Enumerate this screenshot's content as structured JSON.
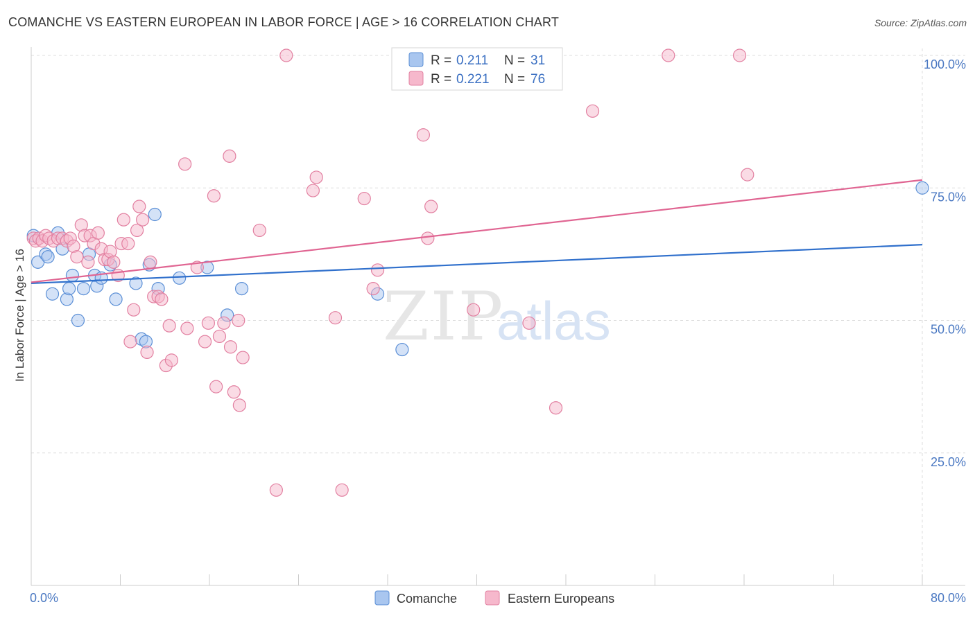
{
  "title": "COMANCHE VS EASTERN EUROPEAN IN LABOR FORCE | AGE > 16 CORRELATION CHART",
  "source": "Source: ZipAtlas.com",
  "watermark": {
    "zip": "ZIP",
    "atlas": "atlas"
  },
  "colors": {
    "comanche_fill": "#a9c6ef",
    "comanche_stroke": "#5b8fd6",
    "comanche_line": "#3070cc",
    "eastern_fill": "#f6b8cc",
    "eastern_stroke": "#e27fa0",
    "eastern_line": "#e06592",
    "grid": "#dddddd",
    "axis": "#cccccc",
    "tick_label": "#4a78c2"
  },
  "legend": {
    "rows": [
      {
        "r_label": "R =",
        "r_value": "0.211",
        "n_label": "N =",
        "n_value": "31"
      },
      {
        "r_label": "R =",
        "r_value": "0.221",
        "n_label": "N =",
        "n_value": "76"
      }
    ]
  },
  "chart_data": {
    "type": "scatter",
    "xlabel": "",
    "ylabel": "In Labor Force | Age > 16",
    "xlim": [
      0,
      80
    ],
    "ylim": [
      0,
      105
    ],
    "x_tick_labels": [
      "0.0%",
      "80.0%"
    ],
    "y_ticks": [
      25,
      50,
      75,
      100
    ],
    "y_tick_labels": [
      "25.0%",
      "50.0%",
      "75.0%",
      "100.0%"
    ],
    "grid": true,
    "legend_position": "bottom-center",
    "series": [
      {
        "name": "Comanche",
        "r": 0.211,
        "n": 31,
        "trend": {
          "x0": 0,
          "y0": 57.0,
          "x1": 80,
          "y1": 64.3
        },
        "points": [
          [
            0.2,
            66.0
          ],
          [
            0.6,
            61.0
          ],
          [
            1.3,
            62.5
          ],
          [
            1.5,
            62.0
          ],
          [
            1.9,
            55.0
          ],
          [
            2.4,
            66.5
          ],
          [
            2.8,
            63.5
          ],
          [
            3.2,
            54.0
          ],
          [
            3.4,
            56.0
          ],
          [
            3.7,
            58.5
          ],
          [
            4.2,
            50.0
          ],
          [
            4.7,
            56.0
          ],
          [
            5.2,
            62.5
          ],
          [
            5.7,
            58.5
          ],
          [
            5.9,
            56.5
          ],
          [
            6.3,
            58.0
          ],
          [
            7.1,
            60.5
          ],
          [
            7.6,
            54.0
          ],
          [
            9.4,
            57.0
          ],
          [
            9.9,
            46.5
          ],
          [
            10.3,
            46.0
          ],
          [
            10.6,
            60.5
          ],
          [
            11.1,
            70.0
          ],
          [
            11.4,
            56.0
          ],
          [
            13.3,
            58.0
          ],
          [
            15.8,
            60.0
          ],
          [
            17.6,
            51.0
          ],
          [
            18.9,
            56.0
          ],
          [
            31.1,
            55.0
          ],
          [
            33.3,
            44.5
          ],
          [
            80.0,
            75.0
          ]
        ]
      },
      {
        "name": "Eastern Europeans",
        "r": 0.221,
        "n": 76,
        "trend": {
          "x0": 0,
          "y0": 57.2,
          "x1": 80,
          "y1": 76.5
        },
        "points": [
          [
            0.2,
            65.5
          ],
          [
            0.4,
            65.0
          ],
          [
            0.7,
            65.5
          ],
          [
            1.0,
            65.0
          ],
          [
            1.3,
            66.0
          ],
          [
            1.6,
            65.5
          ],
          [
            2.0,
            65.0
          ],
          [
            2.4,
            65.5
          ],
          [
            2.8,
            65.5
          ],
          [
            3.2,
            65.0
          ],
          [
            3.5,
            65.5
          ],
          [
            3.8,
            64.0
          ],
          [
            4.1,
            62.0
          ],
          [
            4.5,
            68.0
          ],
          [
            4.8,
            66.0
          ],
          [
            5.1,
            61.0
          ],
          [
            5.3,
            66.0
          ],
          [
            5.6,
            64.5
          ],
          [
            6.0,
            66.5
          ],
          [
            6.3,
            63.5
          ],
          [
            6.6,
            61.5
          ],
          [
            6.9,
            61.5
          ],
          [
            7.1,
            63.0
          ],
          [
            7.4,
            61.0
          ],
          [
            7.8,
            58.5
          ],
          [
            8.1,
            64.5
          ],
          [
            8.3,
            69.0
          ],
          [
            8.7,
            64.5
          ],
          [
            8.9,
            46.0
          ],
          [
            9.2,
            52.0
          ],
          [
            9.5,
            67.0
          ],
          [
            9.7,
            71.5
          ],
          [
            10.0,
            69.0
          ],
          [
            10.4,
            44.0
          ],
          [
            10.7,
            61.0
          ],
          [
            11.0,
            54.5
          ],
          [
            11.4,
            54.5
          ],
          [
            11.7,
            54.0
          ],
          [
            12.1,
            41.5
          ],
          [
            12.4,
            49.0
          ],
          [
            12.6,
            42.5
          ],
          [
            13.8,
            79.5
          ],
          [
            14.0,
            48.5
          ],
          [
            14.9,
            60.0
          ],
          [
            15.6,
            46.0
          ],
          [
            15.9,
            49.5
          ],
          [
            16.4,
            73.5
          ],
          [
            16.6,
            37.5
          ],
          [
            16.9,
            47.0
          ],
          [
            17.3,
            49.5
          ],
          [
            17.8,
            81.0
          ],
          [
            17.9,
            45.0
          ],
          [
            18.2,
            36.5
          ],
          [
            18.6,
            50.0
          ],
          [
            18.7,
            34.0
          ],
          [
            19.0,
            43.0
          ],
          [
            20.5,
            67.0
          ],
          [
            22.0,
            18.0
          ],
          [
            22.9,
            100.0
          ],
          [
            25.3,
            74.5
          ],
          [
            25.6,
            77.0
          ],
          [
            27.3,
            50.5
          ],
          [
            27.9,
            18.0
          ],
          [
            29.9,
            73.0
          ],
          [
            30.7,
            56.0
          ],
          [
            31.1,
            59.5
          ],
          [
            35.2,
            85.0
          ],
          [
            35.6,
            65.5
          ],
          [
            35.9,
            71.5
          ],
          [
            39.7,
            52.0
          ],
          [
            44.7,
            49.5
          ],
          [
            47.1,
            33.5
          ],
          [
            50.4,
            89.5
          ],
          [
            57.2,
            100.0
          ],
          [
            63.6,
            100.0
          ],
          [
            64.3,
            77.5
          ]
        ]
      }
    ]
  }
}
